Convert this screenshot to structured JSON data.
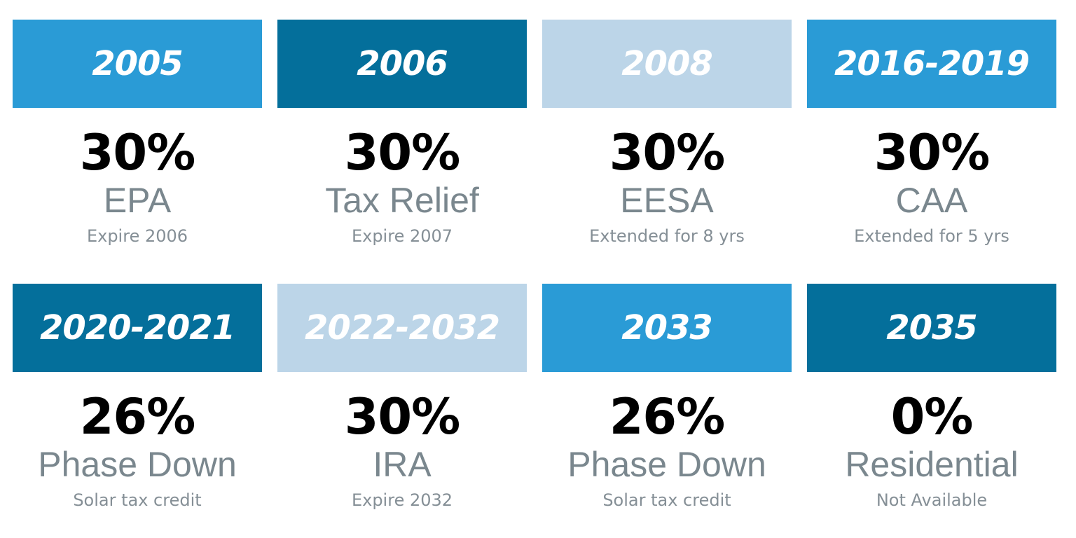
{
  "colors": {
    "medium_blue": "#2a9bd6",
    "dark_blue": "#046f9b",
    "light_blue": "#bcd5e8",
    "percent_text": "#000000",
    "program_text": "#7a878e",
    "note_text": "#858f96"
  },
  "cards": [
    {
      "year": "2005",
      "percent": "30%",
      "program": "EPA",
      "note": "Expire 2006",
      "color": "#2a9bd6"
    },
    {
      "year": "2006",
      "percent": "30%",
      "program": "Tax Relief",
      "note": "Expire 2007",
      "color": "#046f9b"
    },
    {
      "year": "2008",
      "percent": "30%",
      "program": "EESA",
      "note": "Extended for 8 yrs",
      "color": "#bcd5e8"
    },
    {
      "year": "2016-2019",
      "percent": "30%",
      "program": "CAA",
      "note": "Extended for 5 yrs",
      "color": "#2a9bd6"
    },
    {
      "year": "2020-2021",
      "percent": "26%",
      "program": "Phase Down",
      "note": "Solar tax credit",
      "color": "#046f9b"
    },
    {
      "year": "2022-2032",
      "percent": "30%",
      "program": "IRA",
      "note": "Expire 2032",
      "color": "#bcd5e8"
    },
    {
      "year": "2033",
      "percent": "26%",
      "program": "Phase Down",
      "note": "Solar tax credit",
      "color": "#2a9bd6"
    },
    {
      "year": "2035",
      "percent": "0%",
      "program": "Residential",
      "note": "Not Available",
      "color": "#046f9b"
    }
  ]
}
